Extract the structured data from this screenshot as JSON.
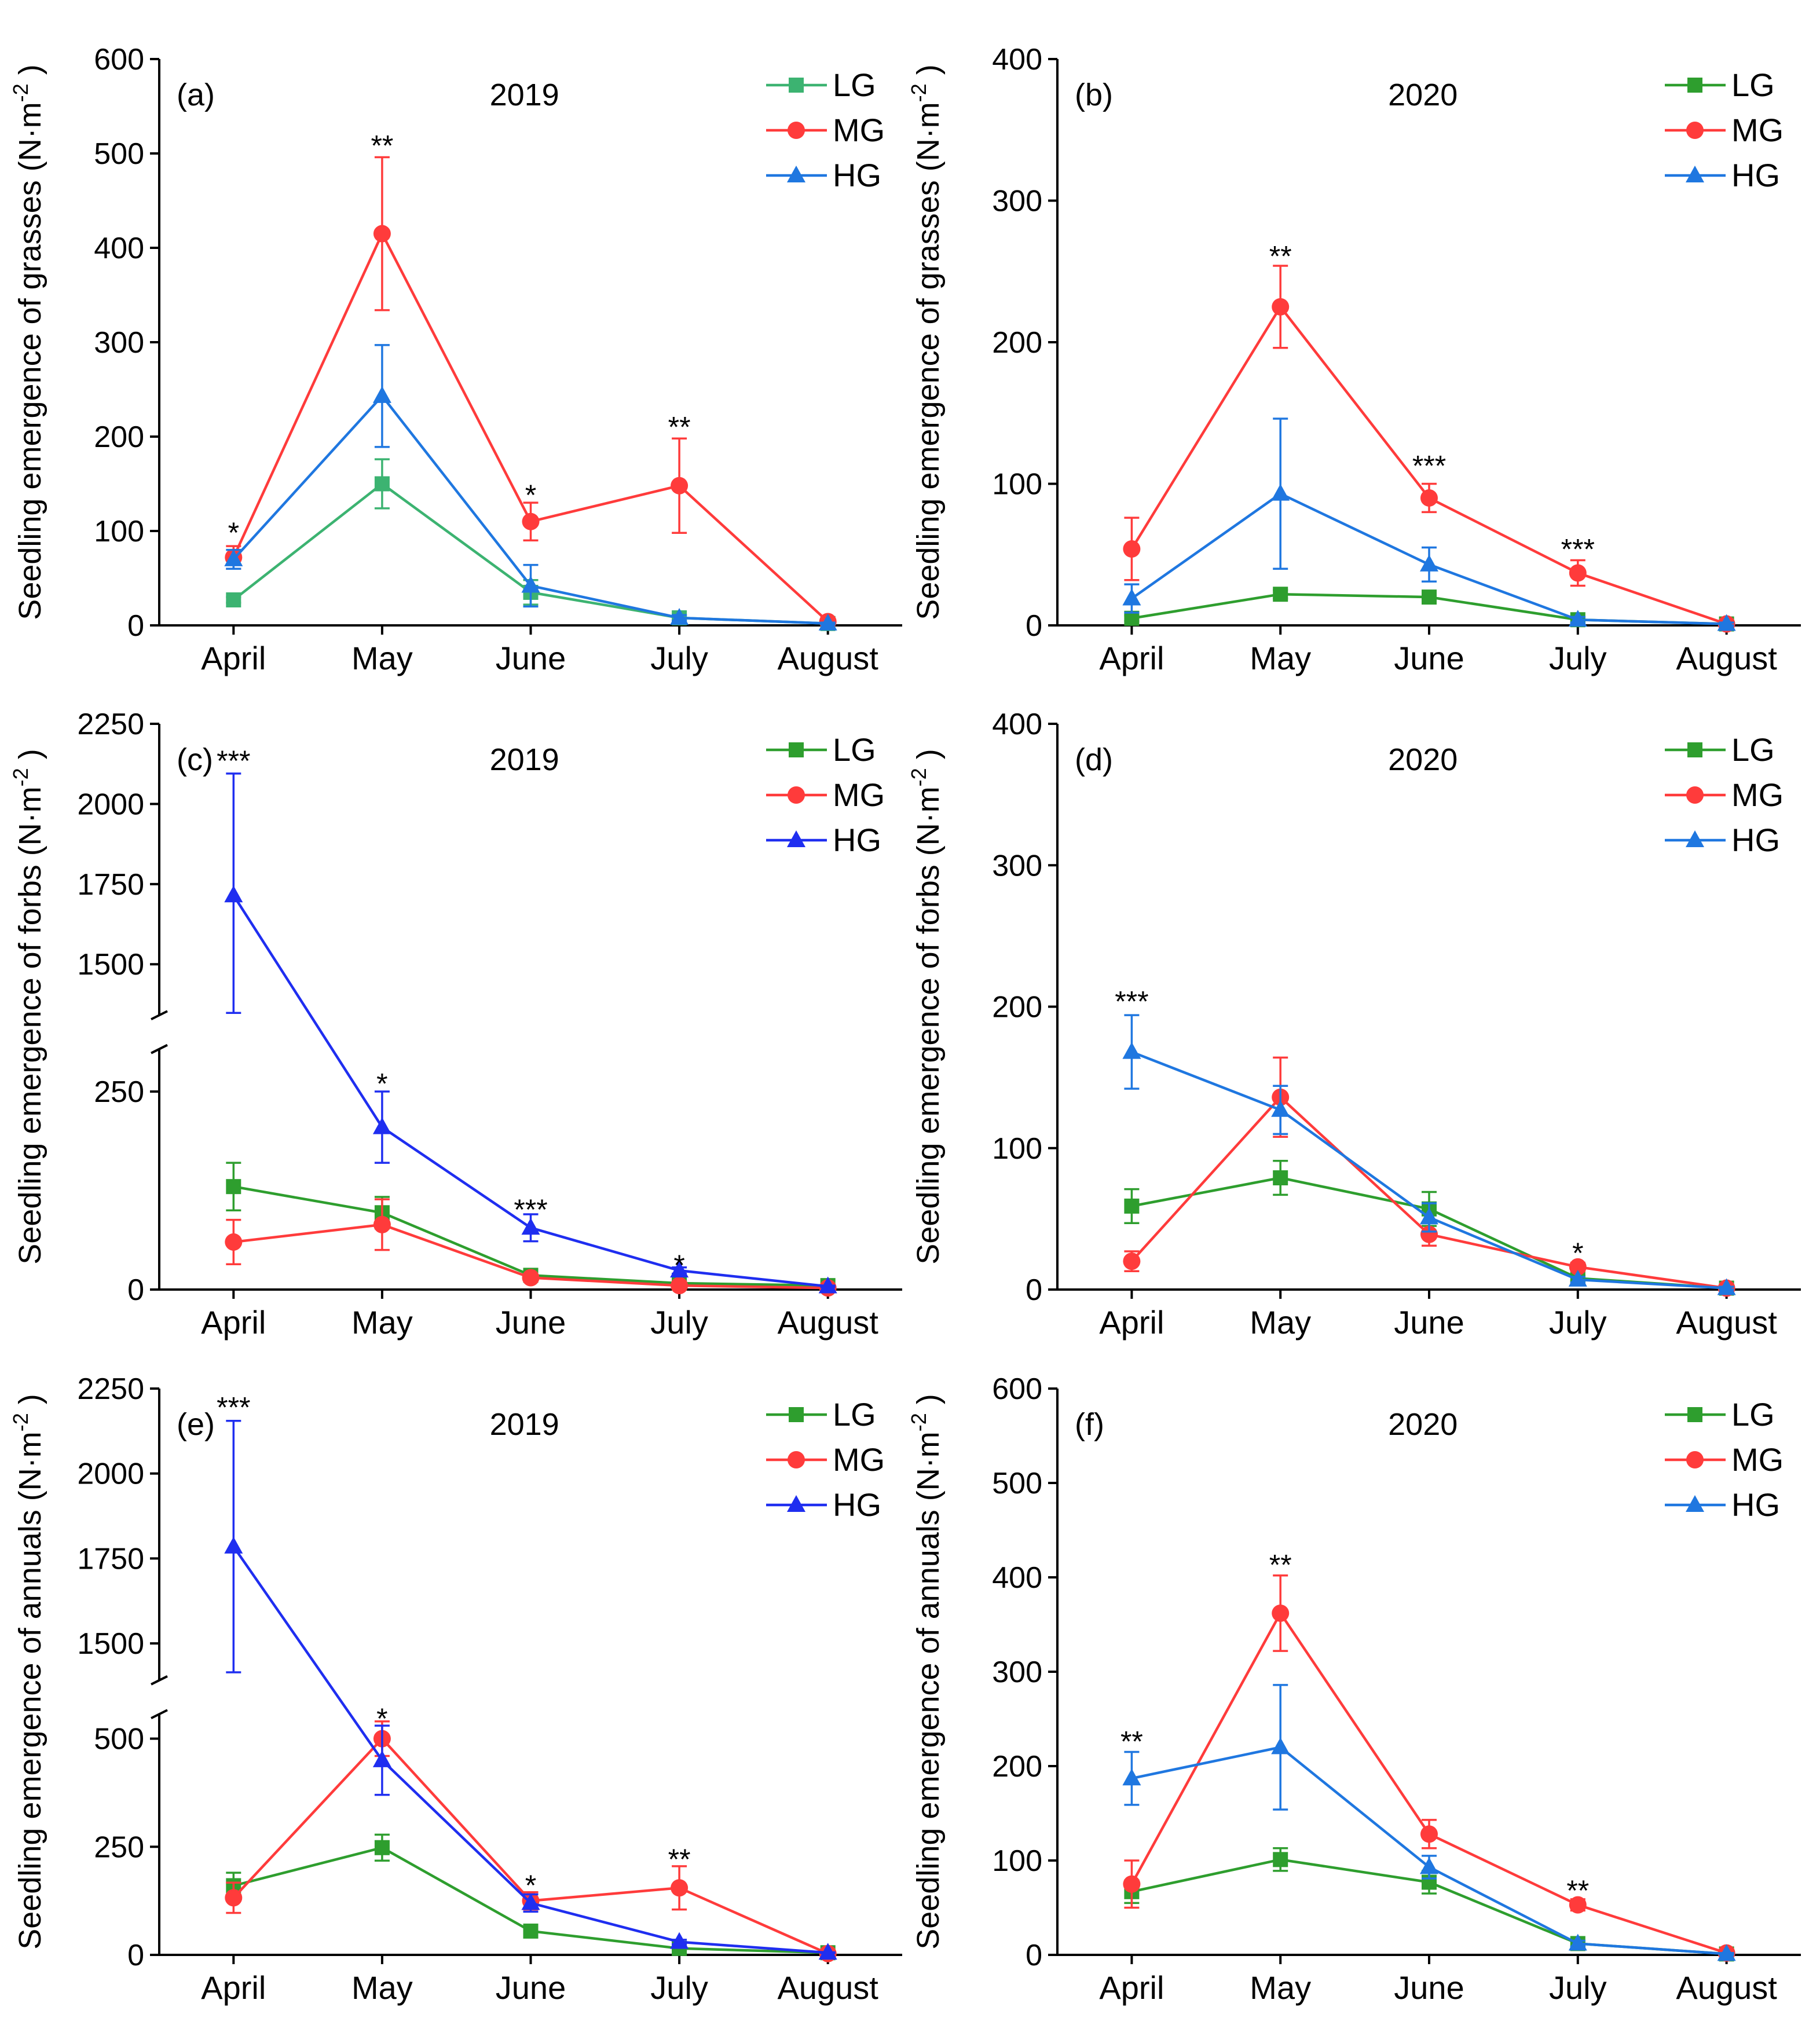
{
  "chart_data": [
    {
      "type": "line",
      "label": "(a)",
      "title": "2019",
      "ylabel": "Seedling emergence of grasses (N·m",
      "ylabel_sup": "-2",
      "ylabel_end": ")",
      "categories": [
        "April",
        "May",
        "June",
        "July",
        "August"
      ],
      "ylim": [
        0,
        600
      ],
      "yticks": [
        0,
        100,
        200,
        300,
        400,
        500,
        600
      ],
      "series": [
        {
          "name": "LG",
          "color": "#3cb371",
          "marker": "square",
          "values": [
            27,
            150,
            35,
            8,
            2
          ],
          "errors": [
            3,
            26,
            13,
            3,
            1
          ]
        },
        {
          "name": "MG",
          "color": "#ff3b3b",
          "marker": "circle",
          "values": [
            72,
            415,
            110,
            148,
            4
          ],
          "errors": [
            12,
            81,
            20,
            50,
            2
          ]
        },
        {
          "name": "HG",
          "color": "#1f77e0",
          "marker": "triangle",
          "values": [
            70,
            243,
            42,
            8,
            2
          ],
          "errors": [
            10,
            54,
            22,
            3,
            1
          ]
        }
      ],
      "annotations": [
        {
          "x": "April",
          "y": 100,
          "text": "*"
        },
        {
          "x": "May",
          "y": 510,
          "text": "**"
        },
        {
          "x": "June",
          "y": 140,
          "text": "*"
        },
        {
          "x": "July",
          "y": 212,
          "text": "**"
        }
      ]
    },
    {
      "type": "line",
      "label": "(b)",
      "title": "2020",
      "ylabel": "Seedling emergence of grasses (N·m",
      "ylabel_sup": "-2",
      "ylabel_end": ")",
      "categories": [
        "April",
        "May",
        "June",
        "July",
        "August"
      ],
      "ylim": [
        0,
        400
      ],
      "yticks": [
        0,
        100,
        200,
        300,
        400
      ],
      "series": [
        {
          "name": "LG",
          "color": "#2e9e2e",
          "marker": "square",
          "values": [
            5,
            22,
            20,
            4,
            1
          ],
          "errors": [
            2,
            3,
            3,
            2,
            1
          ]
        },
        {
          "name": "MG",
          "color": "#ff3b3b",
          "marker": "circle",
          "values": [
            54,
            225,
            90,
            37,
            1
          ],
          "errors": [
            22,
            29,
            10,
            9,
            1
          ]
        },
        {
          "name": "HG",
          "color": "#1f77e0",
          "marker": "triangle",
          "values": [
            19,
            93,
            43,
            4,
            1
          ],
          "errors": [
            10,
            53,
            12,
            2,
            1
          ]
        }
      ],
      "annotations": [
        {
          "x": "May",
          "y": 262,
          "text": "**"
        },
        {
          "x": "June",
          "y": 114,
          "text": "***"
        },
        {
          "x": "July",
          "y": 55,
          "text": "***"
        }
      ]
    },
    {
      "type": "line",
      "label": "(c)",
      "title": "2019",
      "ylabel": "Seedling emergence of forbs (N·m",
      "ylabel_sup": "-2",
      "ylabel_end": ")",
      "categories": [
        "April",
        "May",
        "June",
        "July",
        "August"
      ],
      "ylim": [
        0,
        2250
      ],
      "y_break": [
        300,
        1350
      ],
      "yticks": [
        0,
        250,
        1500,
        1750,
        2000,
        2250
      ],
      "series": [
        {
          "name": "LG",
          "color": "#2e9e2e",
          "marker": "square",
          "values": [
            130,
            97,
            18,
            8,
            5
          ],
          "errors": [
            30,
            20,
            4,
            2,
            1
          ]
        },
        {
          "name": "MG",
          "color": "#ff3b3b",
          "marker": "circle",
          "values": [
            60,
            82,
            15,
            5,
            2
          ],
          "errors": [
            28,
            32,
            3,
            2,
            1
          ]
        },
        {
          "name": "HG",
          "color": "#1f2ef0",
          "marker": "triangle",
          "values": [
            1715,
            205,
            78,
            24,
            4
          ],
          "errors": [
            380,
            45,
            17,
            4,
            1
          ]
        }
      ],
      "annotations": [
        {
          "x": "April",
          "y": 2140,
          "text": "***"
        },
        {
          "x": "May",
          "y": 262,
          "text": "*"
        },
        {
          "x": "June",
          "y": 103,
          "text": "***"
        },
        {
          "x": "July",
          "y": 33,
          "text": "*"
        }
      ]
    },
    {
      "type": "line",
      "label": "(d)",
      "title": "2020",
      "ylabel": "Seedling emergence of forbs (N·m",
      "ylabel_sup": "-2",
      "ylabel_end": ")",
      "categories": [
        "April",
        "May",
        "June",
        "July",
        "August"
      ],
      "ylim": [
        0,
        400
      ],
      "yticks": [
        0,
        100,
        200,
        300,
        400
      ],
      "series": [
        {
          "name": "LG",
          "color": "#2e9e2e",
          "marker": "square",
          "values": [
            59,
            79,
            57,
            8,
            1
          ],
          "errors": [
            12,
            12,
            12,
            2,
            1
          ]
        },
        {
          "name": "MG",
          "color": "#ff3b3b",
          "marker": "circle",
          "values": [
            20,
            136,
            39,
            16,
            1
          ],
          "errors": [
            7,
            28,
            8,
            3,
            1
          ]
        },
        {
          "name": "HG",
          "color": "#1f77e0",
          "marker": "triangle",
          "values": [
            168,
            127,
            51,
            7,
            1
          ],
          "errors": [
            26,
            17,
            10,
            2,
            1
          ]
        }
      ],
      "annotations": [
        {
          "x": "April",
          "y": 205,
          "text": "***"
        },
        {
          "x": "July",
          "y": 27,
          "text": "*"
        }
      ]
    },
    {
      "type": "line",
      "label": "(e)",
      "title": "2019",
      "ylabel": "Seedling emergence of annuals (N·m",
      "ylabel_sup": "-2",
      "ylabel_end": ")",
      "categories": [
        "April",
        "May",
        "June",
        "July",
        "August"
      ],
      "ylim": [
        0,
        2250
      ],
      "y_break": [
        550,
        1400
      ],
      "yticks": [
        0,
        250,
        500,
        1500,
        1750,
        2000,
        2250
      ],
      "series": [
        {
          "name": "LG",
          "color": "#2e9e2e",
          "marker": "square",
          "values": [
            160,
            248,
            55,
            15,
            5
          ],
          "errors": [
            30,
            30,
            5,
            3,
            1
          ]
        },
        {
          "name": "MG",
          "color": "#ff3b3b",
          "marker": "circle",
          "values": [
            132,
            500,
            125,
            155,
            3
          ],
          "errors": [
            35,
            40,
            20,
            50,
            1
          ]
        },
        {
          "name": "HG",
          "color": "#1f2ef0",
          "marker": "triangle",
          "values": [
            1785,
            450,
            120,
            30,
            5
          ],
          "errors": [
            370,
            80,
            20,
            5,
            1
          ]
        }
      ],
      "annotations": [
        {
          "x": "April",
          "y": 2200,
          "text": "***"
        },
        {
          "x": "May",
          "y": 555,
          "text": "*"
        },
        {
          "x": "June",
          "y": 165,
          "text": "*"
        },
        {
          "x": "July",
          "y": 225,
          "text": "**"
        }
      ]
    },
    {
      "type": "line",
      "label": "(f)",
      "title": "2020",
      "ylabel": "Seedling emergence of annuals (N·m",
      "ylabel_sup": "-2",
      "ylabel_end": ")",
      "categories": [
        "April",
        "May",
        "June",
        "July",
        "August"
      ],
      "ylim": [
        0,
        600
      ],
      "yticks": [
        0,
        100,
        200,
        300,
        400,
        500,
        600
      ],
      "series": [
        {
          "name": "LG",
          "color": "#2e9e2e",
          "marker": "square",
          "values": [
            67,
            101,
            77,
            12,
            1
          ],
          "errors": [
            12,
            12,
            12,
            3,
            1
          ]
        },
        {
          "name": "MG",
          "color": "#ff3b3b",
          "marker": "circle",
          "values": [
            75,
            362,
            128,
            53,
            2
          ],
          "errors": [
            25,
            40,
            15,
            6,
            1
          ]
        },
        {
          "name": "HG",
          "color": "#1f77e0",
          "marker": "triangle",
          "values": [
            187,
            220,
            93,
            12,
            1
          ],
          "errors": [
            28,
            66,
            12,
            3,
            1
          ]
        }
      ],
      "annotations": [
        {
          "x": "April",
          "y": 228,
          "text": "**"
        },
        {
          "x": "May",
          "y": 415,
          "text": "**"
        },
        {
          "x": "July",
          "y": 70,
          "text": "**"
        }
      ]
    }
  ]
}
